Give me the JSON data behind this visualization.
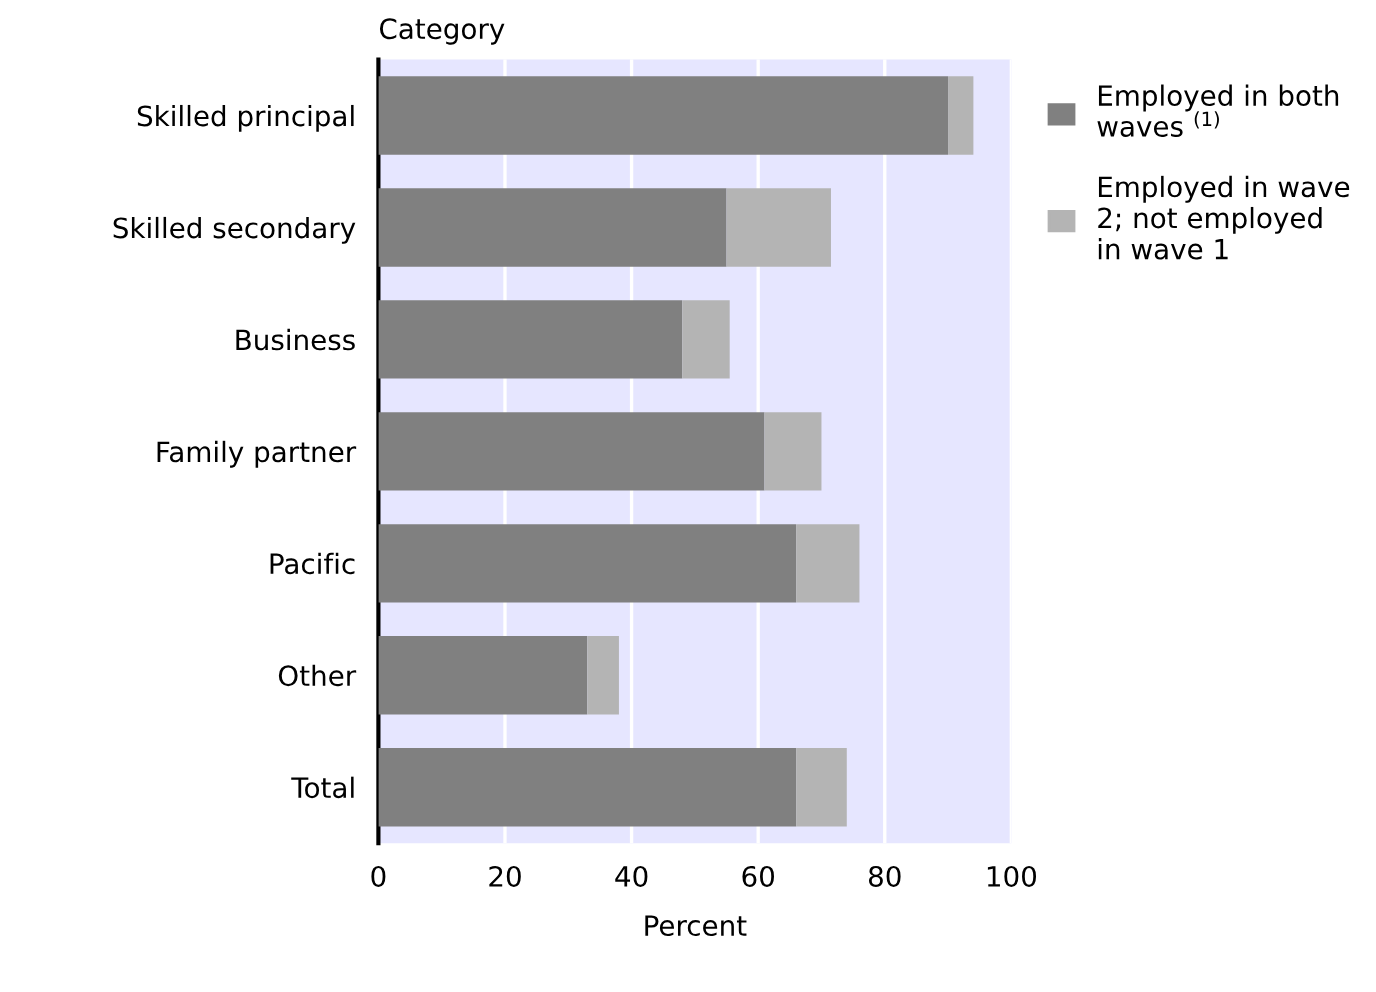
{
  "chart_data": {
    "type": "bar",
    "orientation": "horizontal",
    "stacked": true,
    "ylabel": "Category",
    "xlabel": "Percent",
    "categories": [
      "Skilled principal",
      "Skilled secondary",
      "Business",
      "Family partner",
      "Pacific",
      "Other",
      "Total"
    ],
    "series": [
      {
        "name": "Employed in both waves $^{(1)}$",
        "color": "#808080",
        "values": [
          90,
          55,
          48,
          61,
          66,
          33,
          66
        ]
      },
      {
        "name": "Employed in wave 2; not employed in wave 1",
        "color": "#b4b4b4",
        "values": [
          4,
          16.5,
          7.5,
          9,
          10,
          5,
          8
        ]
      }
    ],
    "xlim": [
      0,
      100
    ],
    "xticks": [
      0,
      20,
      40,
      60,
      80,
      100
    ],
    "grid": "x",
    "legend": "right"
  }
}
